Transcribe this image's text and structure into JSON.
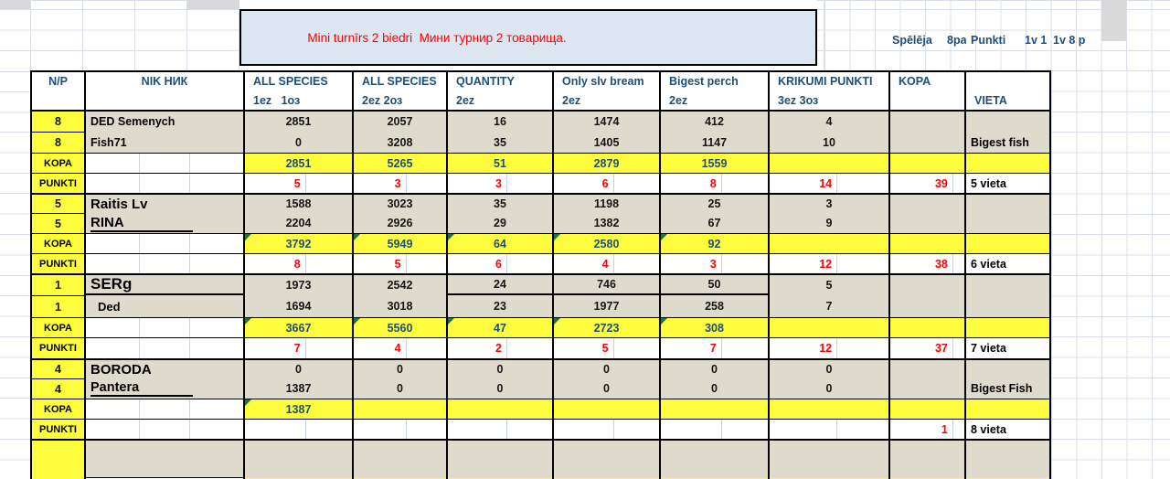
{
  "title_banner": {
    "text": "Mini turnīrs 2 biedri  Мини турнир 2 товарища.",
    "bg": "#dce6f1",
    "text_color": "#ff0000"
  },
  "top_right": {
    "played_label": "Spēlēja",
    "played_value": "8pa",
    "points_label": "Punkti",
    "points_value1": "1v 1",
    "points_value2": "1v 8 p"
  },
  "header": {
    "columns": [
      {
        "line1": "N/P",
        "line2": ""
      },
      {
        "line1": "NIK НИК",
        "line2": ""
      },
      {
        "line1": "ALL SPECIES",
        "line2": "1ez   1оз"
      },
      {
        "line1": "ALL SPECIES",
        "line2": "2ez 2оз"
      },
      {
        "line1": "QUANTITY",
        "line2": "2ez"
      },
      {
        "line1": "Only slv bream",
        "line2": "2ez"
      },
      {
        "line1": "Bigest perch",
        "line2": "2ez"
      },
      {
        "line1": "KRIKUMI PUNKTI",
        "line2": "3ez 3оз"
      },
      {
        "line1": "KOPA",
        "line2": ""
      },
      {
        "line1": "",
        "line2": "VIETA"
      }
    ]
  },
  "row_labels": {
    "kopa": "KOPA",
    "punkti": "PUNKTI"
  },
  "colors": {
    "accent_navy": "#1f4e79",
    "highlight_yellow": "#fdfd3d",
    "cell_beige": "#dfdbcc",
    "red": "#ff0000",
    "banner_blue": "#dce6f1"
  },
  "blocks": [
    {
      "np": [
        "8",
        "8"
      ],
      "names": [
        "DED Semenych",
        "Fish71"
      ],
      "name_class": [
        "n12",
        "n12"
      ],
      "vals1": [
        "2851",
        "2057",
        "16",
        "1474",
        "412",
        "4"
      ],
      "vals2": [
        "0",
        "3208",
        "35",
        "1405",
        "1147",
        "10"
      ],
      "vieta_note": "Bigest fish",
      "kopa": [
        "2851",
        "5265",
        "51",
        "2879",
        "1559",
        ""
      ],
      "kopa_tri": [
        0,
        0,
        0,
        0,
        0,
        0
      ],
      "punkti": [
        "5",
        "3",
        "3",
        "6",
        "8",
        "14"
      ],
      "punkti_kopa": "39",
      "vieta": "5 vieta",
      "divider_cols": []
    },
    {
      "np": [
        "5",
        "5"
      ],
      "names": [
        "Raitis Lv",
        "RINA"
      ],
      "name_class": [
        "n15",
        "n15 u"
      ],
      "vals1": [
        "1588",
        "3023",
        "35",
        "1198",
        "25",
        "3"
      ],
      "vals2": [
        "2204",
        "2926",
        "29",
        "1382",
        "67",
        "9"
      ],
      "vieta_note": "",
      "kopa": [
        "3792",
        "5949",
        "64",
        "2580",
        "92",
        ""
      ],
      "kopa_tri": [
        1,
        1,
        1,
        1,
        1,
        0
      ],
      "punkti": [
        "8",
        "5",
        "6",
        "4",
        "3",
        "12"
      ],
      "punkti_kopa": "38",
      "vieta": "6 vieta",
      "divider_cols": []
    },
    {
      "np": [
        "1",
        "1"
      ],
      "names": [
        "SERg",
        "Ded"
      ],
      "name_class": [
        "n17",
        "n13 ind"
      ],
      "name_divider": true,
      "vals1": [
        "1973",
        "2542",
        "24",
        "746",
        "50",
        "5"
      ],
      "vals2": [
        "1694",
        "3018",
        "23",
        "1977",
        "258",
        "7"
      ],
      "vieta_note": "",
      "kopa": [
        "3667",
        "5560",
        "47",
        "2723",
        "308",
        ""
      ],
      "kopa_tri": [
        1,
        1,
        1,
        1,
        1,
        0
      ],
      "punkti": [
        "7",
        "4",
        "2",
        "5",
        "7",
        "12"
      ],
      "punkti_kopa": "37",
      "vieta": "7 vieta",
      "divider_cols": [
        2,
        3,
        4
      ]
    },
    {
      "np": [
        "4",
        "4"
      ],
      "names": [
        "BORODA",
        "Pantera"
      ],
      "name_class": [
        "n15",
        "n14 u"
      ],
      "vals1": [
        "0",
        "0",
        "0",
        "0",
        "0",
        "0"
      ],
      "vals2": [
        "1387",
        "0",
        "0",
        "0",
        "0",
        "0"
      ],
      "vieta_note": "Bigest Fish",
      "kopa": [
        "1387",
        "",
        "",
        "",
        "",
        ""
      ],
      "kopa_tri": [
        1,
        0,
        0,
        0,
        0,
        0
      ],
      "punkti": [
        "",
        "",
        "",
        "",
        "",
        ""
      ],
      "punkti_kopa": "1",
      "vieta": "8 vieta",
      "divider_cols": []
    }
  ]
}
